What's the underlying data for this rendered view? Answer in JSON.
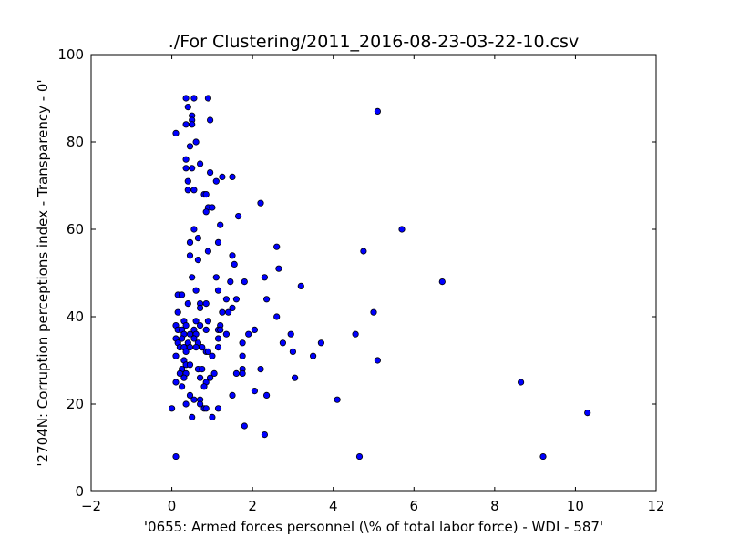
{
  "chart_data": {
    "type": "scatter",
    "title": "./For Clustering/2011_2016-08-23-03-22-10.csv",
    "xlabel": "'0655: Armed forces personnel  (\\% of total labor force) - WDI - 587'",
    "ylabel": "'2704N: Corruption perceptions index - Transparency - 0'",
    "xlim": [
      -2,
      12
    ],
    "ylim": [
      0,
      100
    ],
    "xticks": [
      -2,
      0,
      2,
      4,
      6,
      8,
      10,
      12
    ],
    "yticks": [
      0,
      20,
      40,
      60,
      80,
      100
    ],
    "grid": false,
    "marker_color": "#0000ff",
    "marker_edge": "#000000",
    "points": [
      [
        0.35,
        90
      ],
      [
        0.55,
        90
      ],
      [
        0.9,
        90
      ],
      [
        0.4,
        88
      ],
      [
        5.1,
        87
      ],
      [
        0.5,
        86
      ],
      [
        0.5,
        85
      ],
      [
        0.95,
        85
      ],
      [
        0.35,
        84
      ],
      [
        0.5,
        84
      ],
      [
        0.1,
        82
      ],
      [
        0.6,
        80
      ],
      [
        0.45,
        79
      ],
      [
        0.35,
        76
      ],
      [
        0.7,
        75
      ],
      [
        0.35,
        74
      ],
      [
        0.5,
        74
      ],
      [
        0.95,
        73
      ],
      [
        1.25,
        72
      ],
      [
        1.5,
        72
      ],
      [
        1.1,
        71
      ],
      [
        0.4,
        71
      ],
      [
        0.4,
        69
      ],
      [
        0.55,
        69
      ],
      [
        0.8,
        68
      ],
      [
        0.85,
        68
      ],
      [
        0.9,
        65
      ],
      [
        1.0,
        65
      ],
      [
        0.85,
        64
      ],
      [
        2.2,
        66
      ],
      [
        1.65,
        63
      ],
      [
        1.2,
        61
      ],
      [
        5.7,
        60
      ],
      [
        0.55,
        60
      ],
      [
        0.65,
        58
      ],
      [
        1.15,
        57
      ],
      [
        0.45,
        57
      ],
      [
        2.6,
        56
      ],
      [
        0.9,
        55
      ],
      [
        4.75,
        55
      ],
      [
        0.45,
        54
      ],
      [
        1.5,
        54
      ],
      [
        0.65,
        53
      ],
      [
        1.55,
        52
      ],
      [
        2.65,
        51
      ],
      [
        0.5,
        49
      ],
      [
        1.1,
        49
      ],
      [
        2.3,
        49
      ],
      [
        6.7,
        48
      ],
      [
        1.8,
        48
      ],
      [
        1.45,
        48
      ],
      [
        3.2,
        47
      ],
      [
        0.6,
        46
      ],
      [
        1.15,
        46
      ],
      [
        0.15,
        45
      ],
      [
        0.25,
        45
      ],
      [
        2.35,
        44
      ],
      [
        1.35,
        44
      ],
      [
        1.6,
        44
      ],
      [
        0.4,
        43
      ],
      [
        0.7,
        43
      ],
      [
        0.85,
        43
      ],
      [
        0.7,
        42
      ],
      [
        1.5,
        42
      ],
      [
        0.15,
        41
      ],
      [
        1.25,
        41
      ],
      [
        1.4,
        41
      ],
      [
        5.0,
        41
      ],
      [
        2.6,
        40
      ],
      [
        0.3,
        39
      ],
      [
        0.6,
        39
      ],
      [
        0.9,
        39
      ],
      [
        0.1,
        38
      ],
      [
        0.35,
        38
      ],
      [
        0.7,
        38
      ],
      [
        1.2,
        38
      ],
      [
        0.15,
        37
      ],
      [
        0.25,
        37
      ],
      [
        0.55,
        37
      ],
      [
        0.85,
        37
      ],
      [
        1.15,
        37
      ],
      [
        1.2,
        37
      ],
      [
        2.05,
        37
      ],
      [
        0.3,
        36
      ],
      [
        0.45,
        36
      ],
      [
        0.6,
        36
      ],
      [
        1.35,
        36
      ],
      [
        1.9,
        36
      ],
      [
        2.95,
        36
      ],
      [
        4.55,
        36
      ],
      [
        0.1,
        35
      ],
      [
        0.25,
        35
      ],
      [
        0.55,
        35
      ],
      [
        1.15,
        35
      ],
      [
        0.15,
        34
      ],
      [
        0.4,
        34
      ],
      [
        0.65,
        34
      ],
      [
        1.75,
        34
      ],
      [
        2.75,
        34
      ],
      [
        3.7,
        34
      ],
      [
        0.2,
        33
      ],
      [
        0.3,
        33
      ],
      [
        0.45,
        33
      ],
      [
        0.6,
        33
      ],
      [
        0.75,
        33
      ],
      [
        1.15,
        33
      ],
      [
        0.35,
        32
      ],
      [
        0.85,
        32
      ],
      [
        0.9,
        32
      ],
      [
        3.0,
        32
      ],
      [
        0.1,
        31
      ],
      [
        1.0,
        31
      ],
      [
        1.75,
        31
      ],
      [
        3.5,
        31
      ],
      [
        0.3,
        30
      ],
      [
        5.1,
        30
      ],
      [
        0.35,
        29
      ],
      [
        0.45,
        29
      ],
      [
        0.25,
        28
      ],
      [
        0.65,
        28
      ],
      [
        0.75,
        28
      ],
      [
        1.75,
        28
      ],
      [
        2.2,
        28
      ],
      [
        0.35,
        27
      ],
      [
        0.2,
        27
      ],
      [
        1.05,
        27
      ],
      [
        1.6,
        27
      ],
      [
        1.75,
        27
      ],
      [
        0.3,
        26
      ],
      [
        0.7,
        26
      ],
      [
        0.95,
        26
      ],
      [
        3.05,
        26
      ],
      [
        0.1,
        25
      ],
      [
        0.85,
        25
      ],
      [
        8.65,
        25
      ],
      [
        0.25,
        24
      ],
      [
        0.8,
        24
      ],
      [
        2.05,
        23
      ],
      [
        0.45,
        22
      ],
      [
        1.5,
        22
      ],
      [
        2.35,
        22
      ],
      [
        0.55,
        21
      ],
      [
        0.7,
        21
      ],
      [
        4.1,
        21
      ],
      [
        0.35,
        20
      ],
      [
        0.7,
        20
      ],
      [
        0.0,
        19
      ],
      [
        0.8,
        19
      ],
      [
        0.85,
        19
      ],
      [
        1.15,
        19
      ],
      [
        0.5,
        17
      ],
      [
        1.0,
        17
      ],
      [
        10.3,
        18
      ],
      [
        1.8,
        15
      ],
      [
        2.3,
        13
      ],
      [
        0.1,
        8
      ],
      [
        4.65,
        8
      ],
      [
        9.2,
        8
      ]
    ]
  }
}
